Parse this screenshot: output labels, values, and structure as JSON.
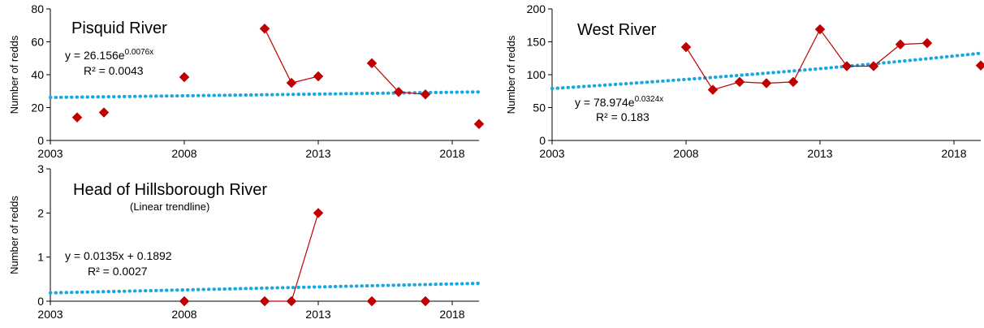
{
  "chart_data": [
    {
      "type": "line",
      "title": "Pisquid River",
      "subtitle": "",
      "xlabel": "",
      "ylabel": "Number of redds",
      "xlim": [
        2003,
        2019
      ],
      "ylim": [
        0,
        80
      ],
      "xticks": [
        "2003",
        "2008",
        "2013",
        "2018"
      ],
      "yticks": [
        "0",
        "20",
        "40",
        "60",
        "80"
      ],
      "grid": false,
      "series": [
        {
          "points": [
            [
              2004,
              14
            ],
            [
              2005,
              17
            ],
            [
              2008,
              38.5
            ],
            [
              2011,
              68
            ],
            [
              2012,
              35
            ],
            [
              2013,
              39
            ],
            [
              2015,
              47
            ],
            [
              2016,
              29.5
            ],
            [
              2017,
              28
            ],
            [
              2019,
              10
            ]
          ],
          "segments": [
            [
              [
                2011,
                68
              ],
              [
                2012,
                35
              ],
              [
                2013,
                39
              ]
            ],
            [
              [
                2015,
                47
              ],
              [
                2016,
                29.5
              ],
              [
                2017,
                28
              ]
            ]
          ]
        }
      ],
      "trendline": {
        "kind": "exponential",
        "a": 26.156,
        "b": 0.0076
      },
      "equation": {
        "main": "y = 26.156e",
        "sup": "0.0076x"
      },
      "r2": "R² = 0.0043"
    },
    {
      "type": "line",
      "title": "West River",
      "subtitle": "",
      "xlabel": "",
      "ylabel": "Number of redds",
      "xlim": [
        2003,
        2019
      ],
      "ylim": [
        0,
        200
      ],
      "xticks": [
        "2003",
        "2008",
        "2013",
        "2018"
      ],
      "yticks": [
        "0",
        "50",
        "100",
        "150",
        "200"
      ],
      "grid": false,
      "series": [
        {
          "points": [
            [
              2008,
              142
            ],
            [
              2009,
              77
            ],
            [
              2010,
              89
            ],
            [
              2011,
              87
            ],
            [
              2012,
              89
            ],
            [
              2013,
              169
            ],
            [
              2014,
              113
            ],
            [
              2015,
              113
            ],
            [
              2016,
              146
            ],
            [
              2017,
              148
            ],
            [
              2019,
              114
            ]
          ],
          "segments": [
            [
              [
                2008,
                142
              ],
              [
                2009,
                77
              ],
              [
                2010,
                89
              ],
              [
                2011,
                87
              ],
              [
                2012,
                89
              ],
              [
                2013,
                169
              ],
              [
                2014,
                113
              ],
              [
                2015,
                113
              ],
              [
                2016,
                146
              ],
              [
                2017,
                148
              ]
            ]
          ]
        }
      ],
      "trendline": {
        "kind": "exponential",
        "a": 78.974,
        "b": 0.0324
      },
      "equation": {
        "main": "y = 78.974e",
        "sup": "0.0324x"
      },
      "r2": "R² = 0.183"
    },
    {
      "type": "line",
      "title": "Head of Hillsborough River",
      "subtitle": "(Linear trendline)",
      "xlabel": "",
      "ylabel": "Number of redds",
      "xlim": [
        2003,
        2019
      ],
      "ylim": [
        0,
        3
      ],
      "xticks": [
        "2003",
        "2008",
        "2013",
        "2018"
      ],
      "yticks": [
        "0",
        "1",
        "2",
        "3"
      ],
      "grid": false,
      "series": [
        {
          "points": [
            [
              2008,
              0
            ],
            [
              2011,
              0
            ],
            [
              2012,
              0
            ],
            [
              2013,
              2
            ],
            [
              2015,
              0
            ],
            [
              2017,
              0
            ]
          ],
          "segments": [
            [
              [
                2011,
                0
              ],
              [
                2012,
                0
              ],
              [
                2013,
                2
              ]
            ]
          ]
        }
      ],
      "trendline": {
        "kind": "linear",
        "a": 0.1892,
        "b": 0.0135
      },
      "equation": {
        "main": "y = 0.0135x + 0.1892",
        "sup": ""
      },
      "r2": "R² = 0.0027"
    }
  ],
  "colors": {
    "data": "#c00000",
    "trend": "#17a8e2",
    "axis": "#000000"
  }
}
